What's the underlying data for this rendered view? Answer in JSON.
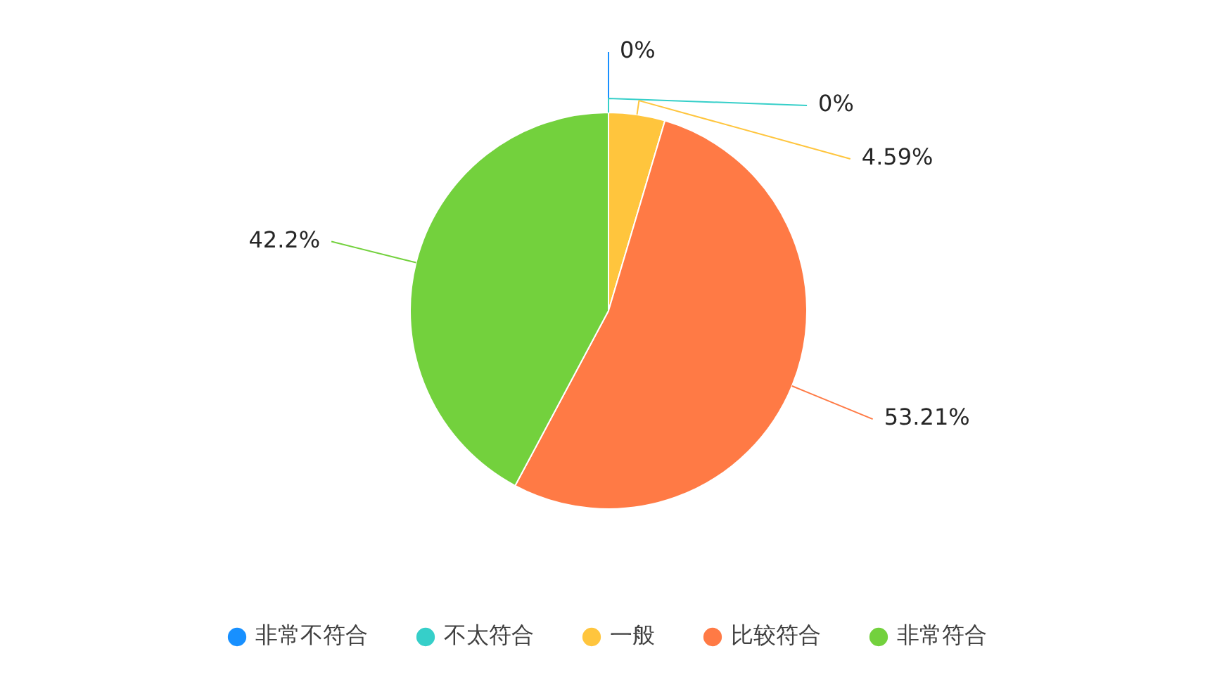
{
  "chart_data": {
    "type": "pie",
    "categories": [
      "非常不符合",
      "不太符合",
      "一般",
      "比较符合",
      "非常符合"
    ],
    "values": [
      0,
      0,
      4.59,
      53.21,
      42.2
    ],
    "colors": [
      "#1890ff",
      "#36cfc9",
      "#ffc53d",
      "#ff7a45",
      "#73d13d"
    ],
    "value_labels": [
      "0%",
      "0%",
      "4.59%",
      "53.21%",
      "42.2%"
    ],
    "legend": "bottom"
  }
}
